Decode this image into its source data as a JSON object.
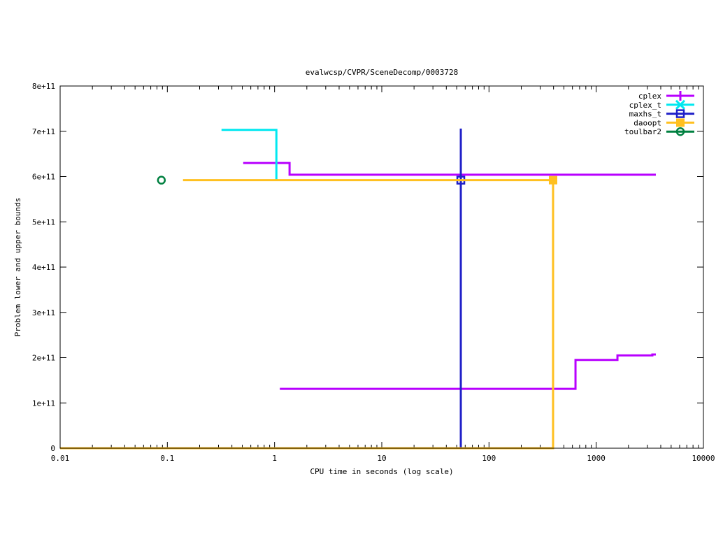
{
  "chart_data": {
    "type": "line",
    "title": "evalwcsp/CVPR/SceneDecomp/0003728",
    "xlabel": "CPU time in seconds (log scale)",
    "ylabel": "Problem lower and upper bounds",
    "x_scale": "log",
    "xlim": [
      0.01,
      10000
    ],
    "ylim": [
      0,
      800000000000
    ],
    "x_ticks": [
      {
        "value": 0.01,
        "label": "0.01"
      },
      {
        "value": 0.1,
        "label": "0.1"
      },
      {
        "value": 1,
        "label": "1"
      },
      {
        "value": 10,
        "label": "10"
      },
      {
        "value": 100,
        "label": "100"
      },
      {
        "value": 1000,
        "label": "1000"
      },
      {
        "value": 10000,
        "label": "10000"
      }
    ],
    "y_ticks": [
      {
        "value": 0,
        "label": "0"
      },
      {
        "value": 100000000000,
        "label": "1e+11"
      },
      {
        "value": 200000000000,
        "label": "2e+11"
      },
      {
        "value": 300000000000,
        "label": "3e+11"
      },
      {
        "value": 400000000000,
        "label": "4e+11"
      },
      {
        "value": 500000000000,
        "label": "5e+11"
      },
      {
        "value": 600000000000,
        "label": "6e+11"
      },
      {
        "value": 700000000000,
        "label": "7e+11"
      },
      {
        "value": 800000000000,
        "label": "8e+11"
      }
    ],
    "grid": false,
    "legend_position": "top-right",
    "series": [
      {
        "name": "cplex",
        "color": "#b800ff",
        "marker": "plus",
        "paths": [
          [
            [
              0.51,
              630000000000
            ],
            [
              1.38,
              630000000000
            ],
            [
              1.38,
              604000000000
            ],
            [
              3600,
              604000000000
            ]
          ],
          [
            [
              1.12,
              131000000000
            ],
            [
              641,
              131000000000
            ],
            [
              641,
              195000000000
            ],
            [
              1578,
              195000000000
            ],
            [
              1578,
              205000000000
            ],
            [
              3340,
              205000000000
            ],
            [
              3340,
              207000000000
            ],
            [
              3600,
              207000000000
            ]
          ]
        ],
        "markers": []
      },
      {
        "name": "cplex_t",
        "color": "#00e8f0",
        "marker": "cross",
        "paths": [
          [
            [
              0.32,
              703000000000
            ],
            [
              1.04,
              703000000000
            ],
            [
              1.04,
              592000000000
            ]
          ]
        ],
        "markers": []
      },
      {
        "name": "maxhs_t",
        "color": "#2020c8",
        "marker": "open-square",
        "paths": [
          [
            [
              54.6,
              706000000000
            ],
            [
              54.6,
              0
            ]
          ]
        ],
        "markers": [
          [
            54.6,
            592000000000
          ]
        ]
      },
      {
        "name": "daoopt",
        "color": "#ffc020",
        "marker": "filled-square",
        "paths": [
          [
            [
              0.14,
              592000000000
            ],
            [
              396,
              592000000000
            ]
          ],
          [
            [
              0.01,
              0
            ],
            [
              396,
              0
            ],
            [
              396,
              592000000000
            ]
          ]
        ],
        "markers": [
          [
            396,
            592000000000
          ]
        ]
      },
      {
        "name": "toulbar2",
        "color": "#008040",
        "marker": "open-circle",
        "paths": [],
        "markers": [
          [
            0.088,
            592000000000
          ]
        ]
      }
    ]
  }
}
